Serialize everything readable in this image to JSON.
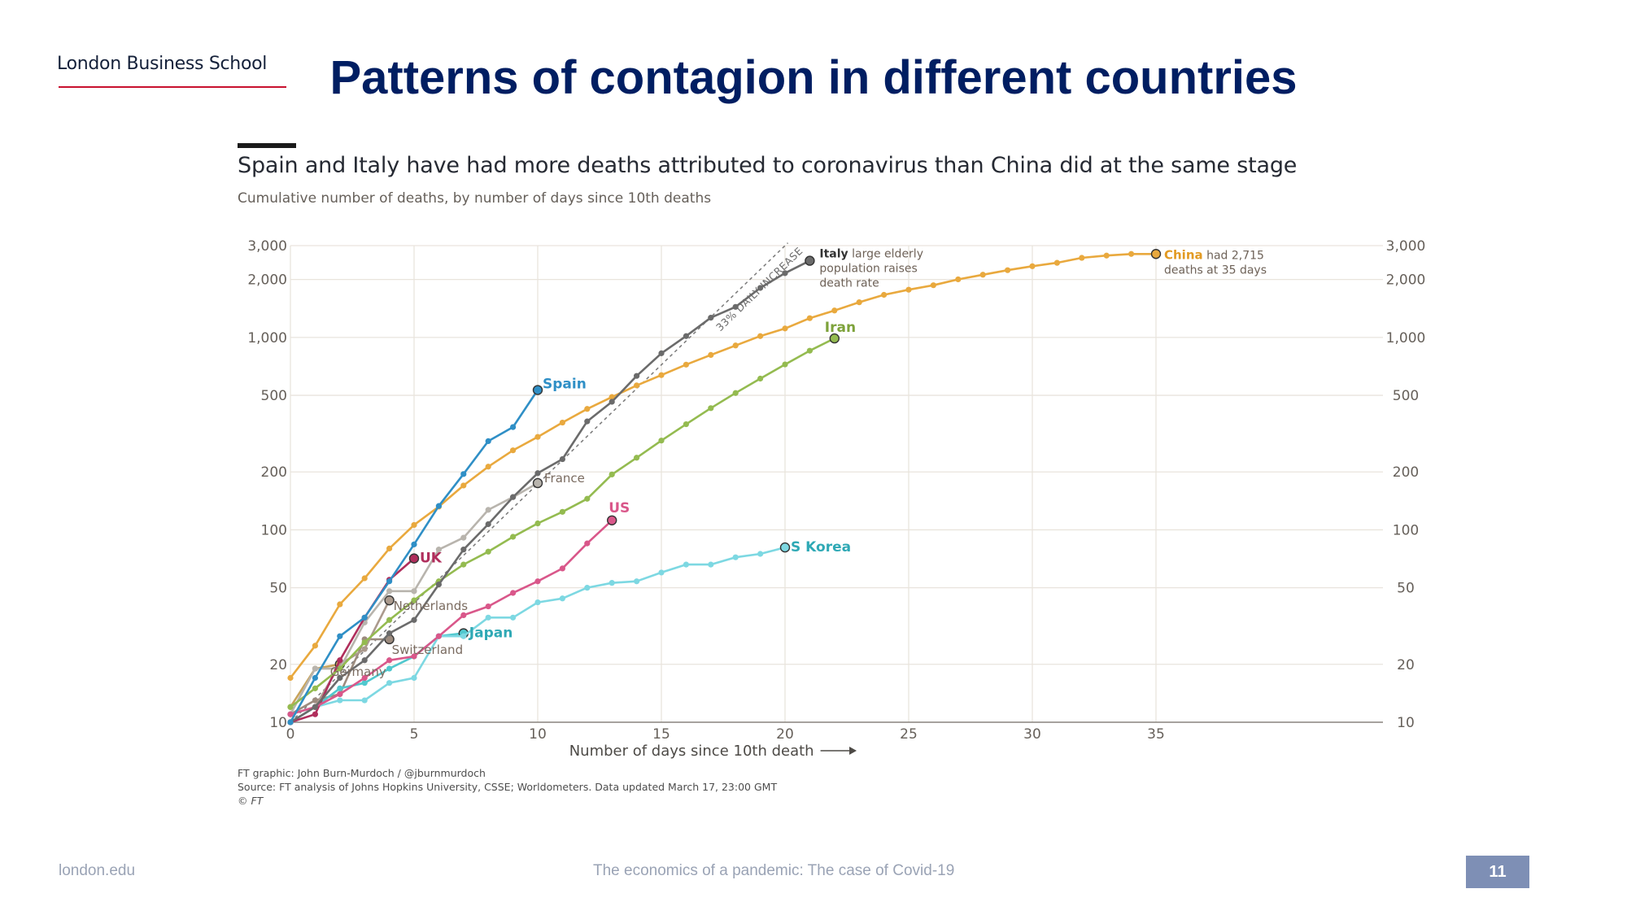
{
  "slide": {
    "brand": "London Business School",
    "title": "Patterns of contagion in different countries",
    "footer_left": "london.edu",
    "footer_center": "The economics of a pandemic: The case of Covid-19",
    "page_number": "11"
  },
  "chart_data": {
    "type": "line",
    "title": "Spain and Italy have had more deaths attributed to coronavirus than China did at the same stage",
    "subtitle": "Cumulative number of deaths, by number of days since 10th deaths",
    "xlabel": "Number of days since 10th death",
    "ylabel": "",
    "xlim": [
      0,
      44
    ],
    "ylim": [
      10,
      3000
    ],
    "y_scale": "log",
    "x_ticks": [
      0,
      5,
      10,
      15,
      20,
      25,
      30,
      35
    ],
    "y_ticks": [
      10,
      20,
      50,
      100,
      200,
      500,
      1000,
      2000,
      3000
    ],
    "y_tick_labels": [
      "10",
      "20",
      "50",
      "100",
      "200",
      "500",
      "1,000",
      "2,000",
      "3,000"
    ],
    "grid": true,
    "reference_line": {
      "label": "33% DAILY INCREASE",
      "daily_growth": 1.33
    },
    "series": [
      {
        "name": "China",
        "color": "#e9a93e",
        "label_suffix": "had 2,715",
        "label_line2": "deaths at 35 days",
        "x": [
          0,
          1,
          2,
          3,
          4,
          5,
          6,
          7,
          8,
          9,
          10,
          11,
          12,
          13,
          14,
          15,
          16,
          17,
          18,
          19,
          20,
          21,
          22,
          23,
          24,
          25,
          26,
          27,
          28,
          29,
          30,
          31,
          32,
          33,
          34,
          35
        ],
        "values": [
          17,
          25,
          41,
          56,
          80,
          106,
          132,
          170,
          213,
          259,
          304,
          361,
          425,
          490,
          563,
          637,
          722,
          811,
          908,
          1016,
          1113,
          1259,
          1380,
          1523,
          1665,
          1770,
          1868,
          2004,
          2118,
          2236,
          2345,
          2442,
          2592,
          2663,
          2715,
          2715
        ]
      },
      {
        "name": "Italy",
        "color": "#6b6b6b",
        "label_suffix": "large elderly",
        "label_line2": "population raises",
        "label_line3": "death rate",
        "x": [
          0,
          1,
          2,
          3,
          4,
          5,
          6,
          7,
          8,
          9,
          10,
          11,
          12,
          13,
          14,
          15,
          16,
          17,
          18,
          19,
          20,
          21
        ],
        "values": [
          10,
          12,
          17,
          21,
          29,
          34,
          52,
          79,
          107,
          148,
          197,
          233,
          366,
          463,
          631,
          827,
          1016,
          1266,
          1441,
          1809,
          2158,
          2503
        ]
      },
      {
        "name": "Spain",
        "color": "#2f8fc6",
        "x": [
          0,
          1,
          2,
          3,
          4,
          5,
          6,
          7,
          8,
          9,
          10
        ],
        "values": [
          10,
          17,
          28,
          35,
          54,
          84,
          133,
          195,
          289,
          342,
          533
        ]
      },
      {
        "name": "Iran",
        "color": "#94bb50",
        "x": [
          0,
          1,
          2,
          3,
          4,
          5,
          6,
          7,
          8,
          9,
          10,
          11,
          12,
          13,
          14,
          15,
          16,
          17,
          18,
          19,
          20,
          21,
          22
        ],
        "values": [
          12,
          15,
          19,
          26,
          34,
          43,
          54,
          66,
          77,
          92,
          108,
          124,
          145,
          194,
          237,
          291,
          354,
          429,
          514,
          611,
          724,
          853,
          988
        ]
      },
      {
        "name": "France",
        "color": "#b8b4ad",
        "x": [
          0,
          1,
          2,
          3,
          4,
          5,
          6,
          7,
          8,
          9,
          10
        ],
        "values": [
          11,
          19,
          19,
          33,
          48,
          48,
          79,
          91,
          127,
          148,
          175
        ]
      },
      {
        "name": "US",
        "color": "#d9578a",
        "x": [
          0,
          1,
          2,
          3,
          4,
          5,
          6,
          7,
          8,
          9,
          10,
          11,
          12,
          13
        ],
        "values": [
          11,
          12,
          14,
          17,
          21,
          22,
          28,
          36,
          40,
          47,
          54,
          63,
          85,
          112
        ]
      },
      {
        "name": "S Korea",
        "color": "#7dd8e2",
        "x": [
          0,
          1,
          2,
          3,
          4,
          5,
          6,
          7,
          8,
          9,
          10,
          11,
          12,
          13,
          14,
          15,
          16,
          17,
          18,
          19,
          20
        ],
        "values": [
          11,
          12,
          13,
          13,
          16,
          17,
          28,
          28,
          35,
          35,
          42,
          44,
          50,
          53,
          54,
          60,
          66,
          66,
          72,
          75,
          81
        ]
      },
      {
        "name": "UK",
        "color": "#b02e5c",
        "x": [
          0,
          1,
          2,
          3,
          4,
          5
        ],
        "values": [
          10,
          11,
          21,
          35,
          55,
          71
        ]
      },
      {
        "name": "Netherlands",
        "color": "#ab9a8d",
        "x": [
          0,
          1,
          2,
          3,
          4
        ],
        "values": [
          10,
          12,
          20,
          24,
          43
        ]
      },
      {
        "name": "Switzerland",
        "color": "#9c8b7e",
        "x": [
          0,
          1,
          2,
          3,
          4
        ],
        "values": [
          11,
          13,
          14,
          27,
          27
        ]
      },
      {
        "name": "Japan",
        "color": "#50c8ce",
        "x": [
          0,
          1,
          2,
          3,
          4,
          5,
          6,
          7
        ],
        "values": [
          10,
          12,
          15,
          16,
          19,
          22,
          28,
          29
        ]
      },
      {
        "name": "Germany",
        "color": "#c8a35a",
        "x": [
          0,
          1,
          2
        ],
        "values": [
          12,
          19,
          20
        ]
      }
    ],
    "credits": [
      "FT graphic: John Burn-Murdoch / @jburnmurdoch",
      "Source: FT analysis of Johns Hopkins University, CSSE; Worldometers. Data updated March 17, 23:00 GMT",
      "© FT"
    ]
  }
}
